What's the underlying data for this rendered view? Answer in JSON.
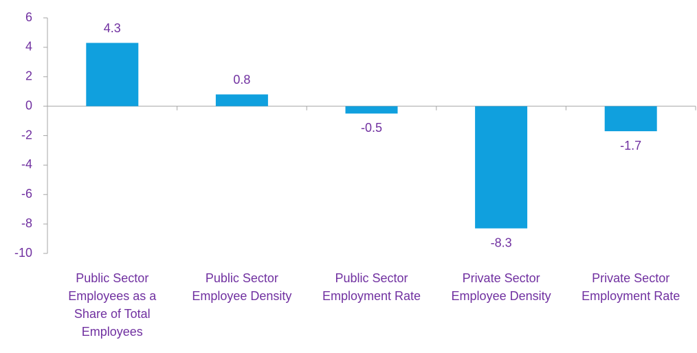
{
  "chart_data": {
    "type": "bar",
    "categories": [
      "Public Sector Employees as a Share of Total Employees",
      "Public Sector Employee Density",
      "Public Sector Employment Rate",
      "Private Sector Employee Density",
      "Private Sector Employment Rate"
    ],
    "values": [
      4.3,
      0.8,
      -0.5,
      -8.3,
      -1.7
    ],
    "color": "#10a0de",
    "ylim": [
      -10,
      6
    ],
    "yticks": [
      -10,
      -8,
      -6,
      -4,
      -2,
      0,
      2,
      4,
      6
    ],
    "grid": false
  }
}
